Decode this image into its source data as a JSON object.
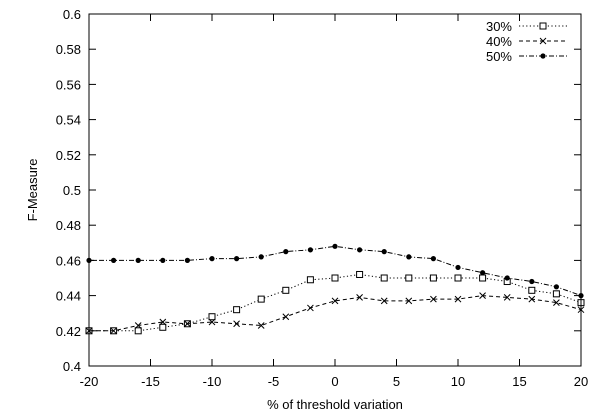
{
  "chart_data": {
    "type": "line",
    "title": "",
    "xlabel": "% of threshold variation",
    "ylabel": "F-Measure",
    "xlim": [
      -20,
      20
    ],
    "ylim": [
      0.4,
      0.6
    ],
    "x_ticks": [
      "-20",
      "-15",
      "-10",
      "-5",
      "0",
      "5",
      "10",
      "15",
      "20"
    ],
    "y_ticks": [
      "0.4",
      "0.42",
      "0.44",
      "0.46",
      "0.48",
      "0.5",
      "0.52",
      "0.54",
      "0.56",
      "0.58",
      "0.6"
    ],
    "grid": false,
    "legend_position": "top-right",
    "x": [
      -20,
      -18,
      -16,
      -14,
      -12,
      -10,
      -8,
      -6,
      -4,
      -2,
      0,
      2,
      4,
      6,
      8,
      10,
      12,
      14,
      16,
      18,
      20
    ],
    "series": [
      {
        "name": "30%",
        "marker": "open-square",
        "line_style": "dotted",
        "values": [
          0.42,
          0.42,
          0.42,
          0.422,
          0.424,
          0.428,
          0.432,
          0.438,
          0.443,
          0.449,
          0.45,
          0.452,
          0.45,
          0.45,
          0.45,
          0.45,
          0.45,
          0.448,
          0.443,
          0.441,
          0.436
        ]
      },
      {
        "name": "40%",
        "marker": "cross",
        "line_style": "dashed",
        "values": [
          0.42,
          0.42,
          0.423,
          0.425,
          0.424,
          0.425,
          0.424,
          0.423,
          0.428,
          0.433,
          0.437,
          0.439,
          0.437,
          0.437,
          0.438,
          0.438,
          0.44,
          0.439,
          0.438,
          0.436,
          0.432
        ]
      },
      {
        "name": "50%",
        "marker": "filled-circle",
        "line_style": "dash-dot",
        "values": [
          0.46,
          0.46,
          0.46,
          0.46,
          0.46,
          0.461,
          0.461,
          0.462,
          0.465,
          0.466,
          0.468,
          0.466,
          0.465,
          0.462,
          0.461,
          0.456,
          0.453,
          0.45,
          0.448,
          0.445,
          0.44
        ]
      }
    ]
  }
}
